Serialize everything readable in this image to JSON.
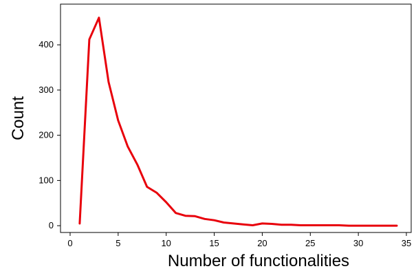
{
  "chart_data": {
    "type": "line",
    "title": "",
    "xlabel": "Number of functionalities",
    "ylabel": "Count",
    "xlim": [
      -1,
      35.5
    ],
    "ylim": [
      -15,
      490
    ],
    "xticks": [
      0,
      5,
      10,
      15,
      20,
      25,
      30,
      35
    ],
    "yticks": [
      0,
      100,
      200,
      300,
      400
    ],
    "grid": false,
    "legend": "none",
    "series": [
      {
        "color": "#e8000b",
        "x": [
          1,
          2,
          3,
          4,
          5,
          6,
          7,
          8,
          9,
          10,
          11,
          12,
          13,
          14,
          15,
          16,
          17,
          18,
          19,
          20,
          21,
          22,
          23,
          24,
          25,
          26,
          27,
          28,
          29,
          30,
          31,
          32,
          33,
          34
        ],
        "y": [
          5,
          412,
          460,
          318,
          233,
          175,
          135,
          86,
          73,
          52,
          28,
          22,
          21,
          15,
          12,
          7,
          5,
          3,
          1,
          5,
          4,
          2,
          2,
          1,
          1,
          1,
          1,
          1,
          0,
          0,
          0,
          0,
          0,
          0
        ]
      }
    ]
  }
}
